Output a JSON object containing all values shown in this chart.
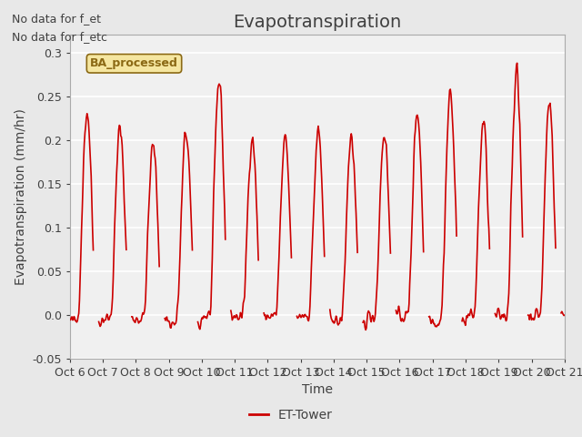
{
  "title": "Evapotranspiration",
  "xlabel": "Time",
  "ylabel": "Evapotranspiration (mm/hr)",
  "xlim_days": [
    0,
    15
  ],
  "ylim": [
    -0.05,
    0.32
  ],
  "yticks": [
    -0.05,
    0.0,
    0.05,
    0.1,
    0.15,
    0.2,
    0.25,
    0.3
  ],
  "x_tick_labels": [
    "Oct 6",
    "Oct 7",
    "Oct 8",
    "Oct 9",
    "Oct 10",
    "Oct 11",
    "Oct 12",
    "Oct 13",
    "Oct 14",
    "Oct 15",
    "Oct 16",
    "Oct 17",
    "Oct 18",
    "Oct 19",
    "Oct 20",
    "Oct 21"
  ],
  "line_color": "#cc0000",
  "line_width": 1.2,
  "bg_color": "#e8e8e8",
  "plot_bg_color": "#e8e8e8",
  "inner_bg_color": "#f0f0f0",
  "text_color": "#404040",
  "annotation_text1": "No data for f_et",
  "annotation_text2": "No data for f_etc",
  "box_label": "BA_processed",
  "legend_label": "ET-Tower",
  "title_fontsize": 14,
  "label_fontsize": 10,
  "tick_fontsize": 9,
  "grid_color": "#ffffff",
  "day_peaks": [
    0.235,
    0.215,
    0.195,
    0.21,
    0.27,
    0.205,
    0.2,
    0.21,
    0.205,
    0.21,
    0.235,
    0.255,
    0.22,
    0.278,
    0.245
  ],
  "day_troughs": [
    -0.025,
    -0.015,
    -0.015,
    -0.035,
    -0.005,
    -0.008,
    -0.005,
    0.0,
    -0.03,
    -0.005,
    -0.005,
    -0.03,
    -0.005,
    -0.005,
    0.0
  ]
}
